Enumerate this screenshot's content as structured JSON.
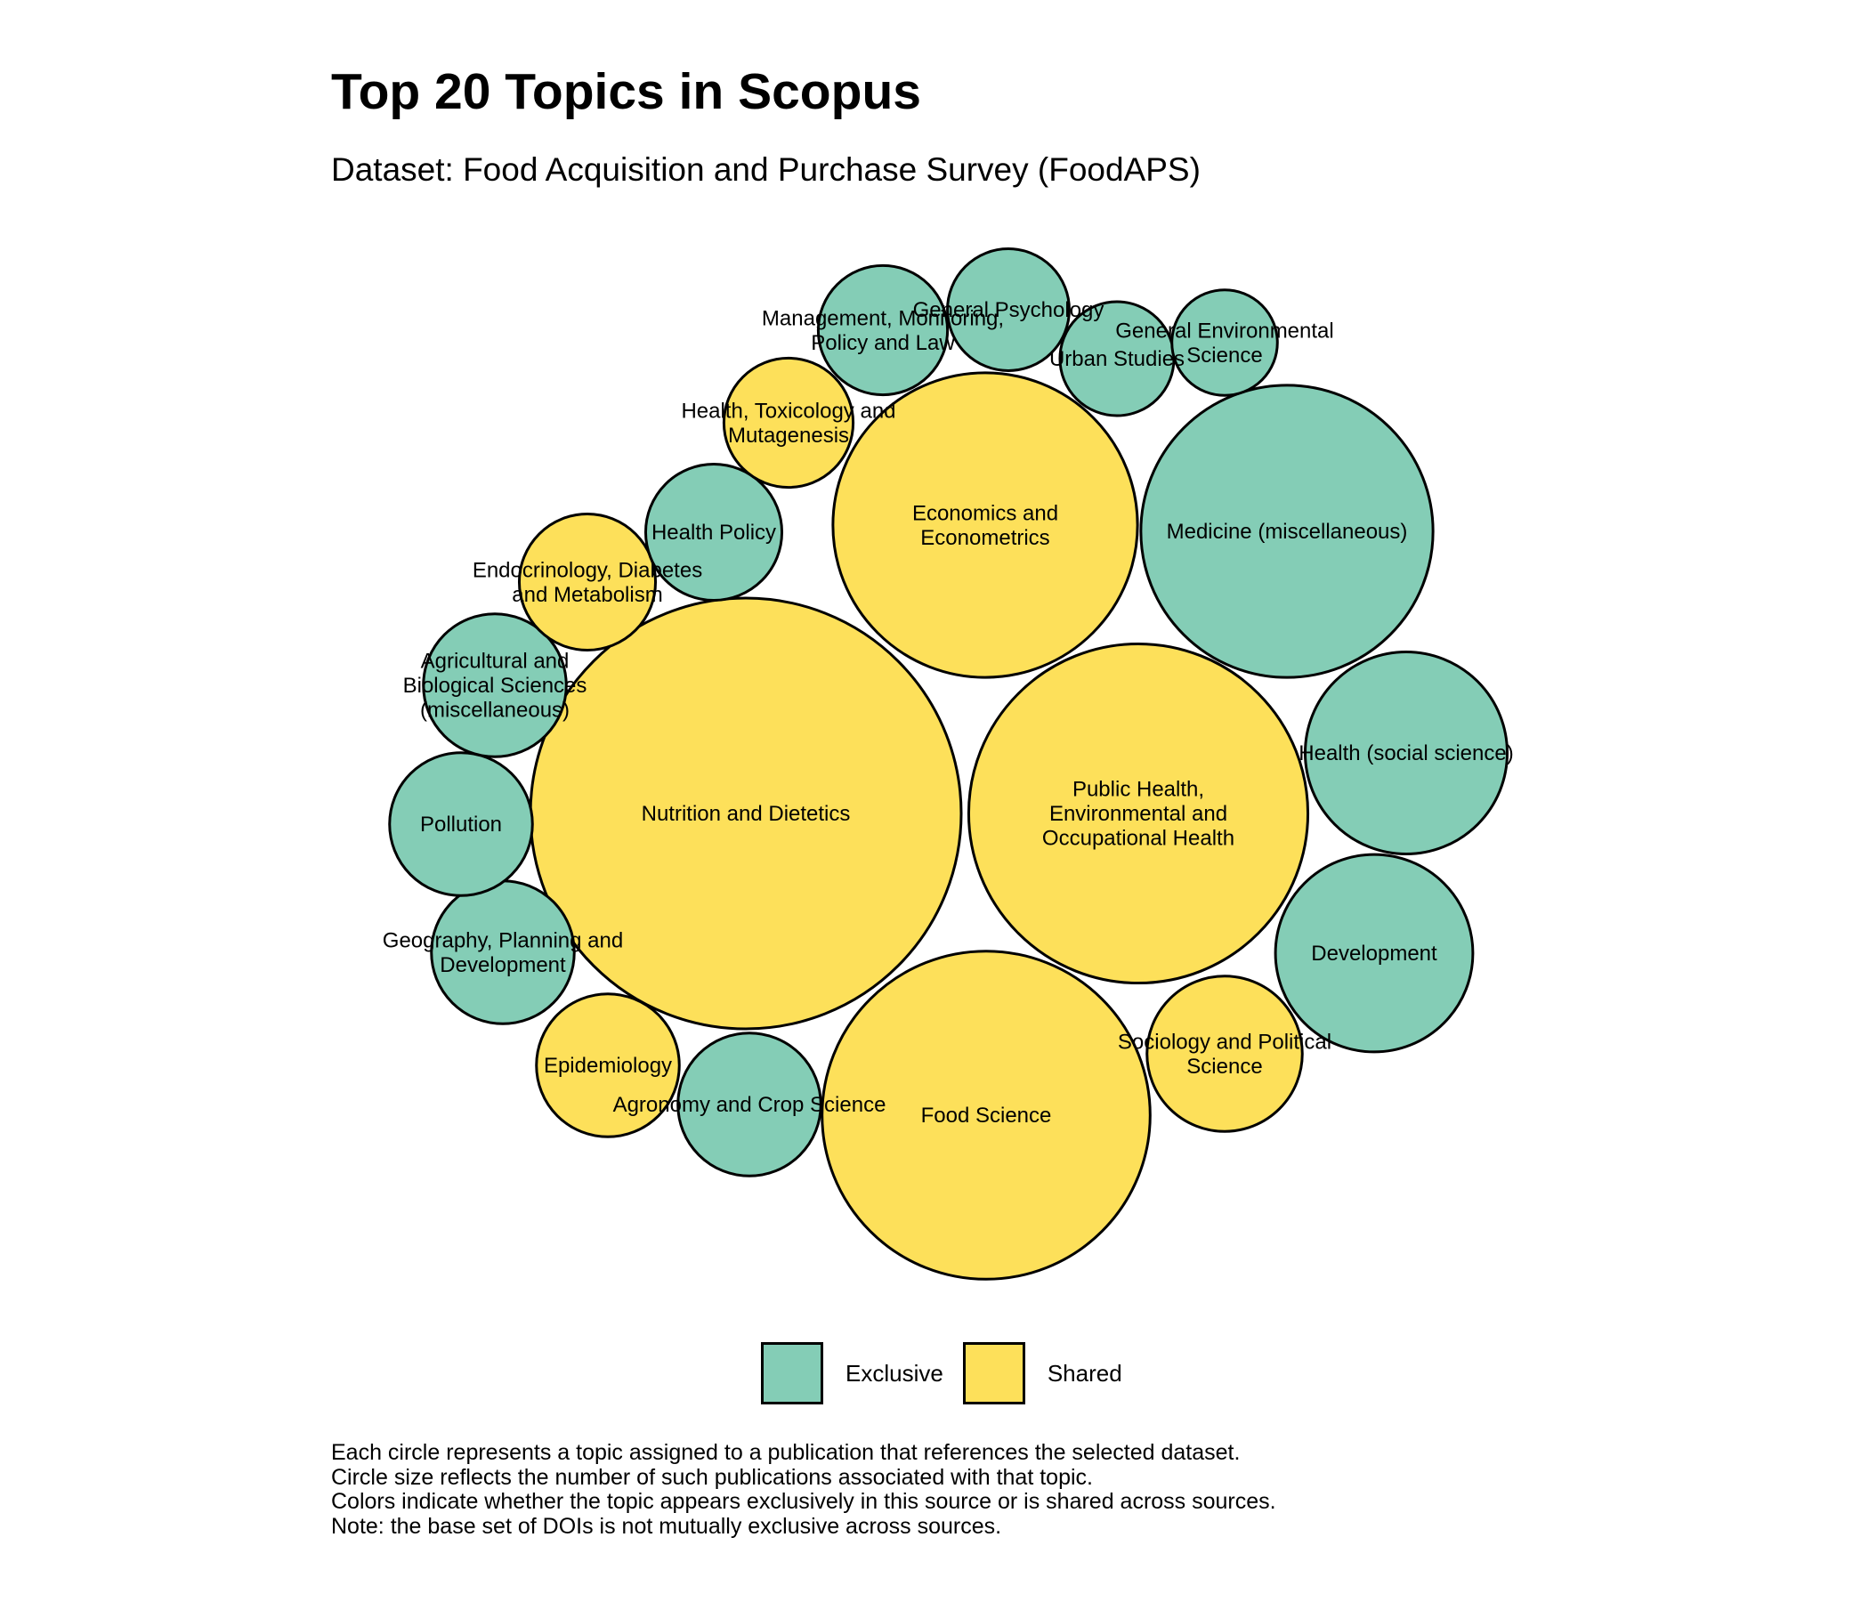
{
  "title": "Top 20 Topics in Scopus",
  "subtitle": "Dataset: Food Acquisition and Purchase Survey (FoodAPS)",
  "colors": {
    "Exclusive": "#84CDB6",
    "Shared": "#FDE05A",
    "stroke": "#000000"
  },
  "chart_data": {
    "type": "bubble",
    "legend": [
      "Exclusive",
      "Shared"
    ],
    "bubbles": [
      {
        "label": [
          "Nutrition and Dietetics"
        ],
        "group": "Shared",
        "size": 100
      },
      {
        "label": [
          "Public Health,",
          "Environmental and",
          "Occupational Health"
        ],
        "group": "Shared",
        "size": 62
      },
      {
        "label": [
          "Food Science"
        ],
        "group": "Shared",
        "size": 58
      },
      {
        "label": [
          "Economics and",
          "Econometrics"
        ],
        "group": "Shared",
        "size": 50
      },
      {
        "label": [
          "Medicine (miscellaneous)"
        ],
        "group": "Exclusive",
        "size": 46
      },
      {
        "label": [
          "Health (social science)"
        ],
        "group": "Exclusive",
        "size": 22
      },
      {
        "label": [
          "Development"
        ],
        "group": "Exclusive",
        "size": 21
      },
      {
        "label": [
          "Sociology and Political",
          "Science"
        ],
        "group": "Shared",
        "size": 13
      },
      {
        "label": [
          "Agronomy and Crop Science"
        ],
        "group": "Exclusive",
        "size": 11
      },
      {
        "label": [
          "Epidemiology"
        ],
        "group": "Shared",
        "size": 11
      },
      {
        "label": [
          "Geography, Planning and",
          "Development"
        ],
        "group": "Exclusive",
        "size": 11
      },
      {
        "label": [
          "Pollution"
        ],
        "group": "Exclusive",
        "size": 11
      },
      {
        "label": [
          "Agricultural and",
          "Biological Sciences",
          "(miscellaneous)"
        ],
        "group": "Exclusive",
        "size": 11
      },
      {
        "label": [
          "Endocrinology, Diabetes",
          "and Metabolism"
        ],
        "group": "Shared",
        "size": 10
      },
      {
        "label": [
          "Health Policy"
        ],
        "group": "Exclusive",
        "size": 10
      },
      {
        "label": [
          "Health, Toxicology and",
          "Mutagenesis"
        ],
        "group": "Shared",
        "size": 9
      },
      {
        "label": [
          "Management, Monitoring,",
          "Policy and Law"
        ],
        "group": "Exclusive",
        "size": 9
      },
      {
        "label": [
          "General Psychology"
        ],
        "group": "Exclusive",
        "size": 8
      },
      {
        "label": [
          "Urban Studies"
        ],
        "group": "Exclusive",
        "size": 7
      },
      {
        "label": [
          "General Environmental",
          "Science"
        ],
        "group": "Exclusive",
        "size": 6
      }
    ]
  },
  "caption": [
    "Each circle represents a topic assigned to a publication that references the selected dataset.",
    "Circle size reflects the number of such publications associated with that topic.",
    "Colors indicate whether the topic appears exclusively in this source or is shared across sources.",
    "Note: the base set of DOIs is not mutually exclusive across sources."
  ]
}
